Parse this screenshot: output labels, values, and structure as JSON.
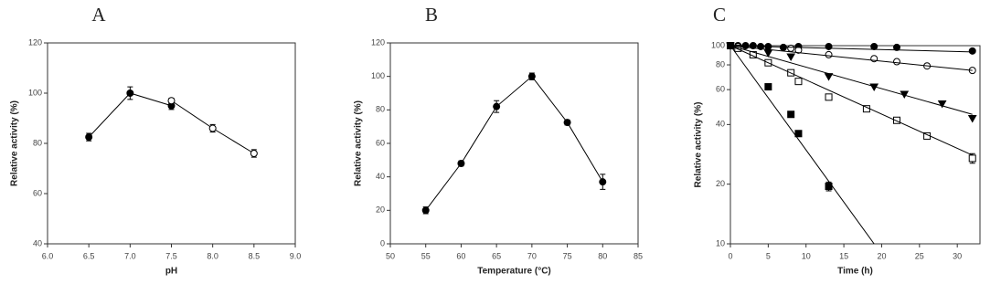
{
  "chart_data": [
    {
      "type": "scatter",
      "title": "A",
      "xlabel": "pH",
      "ylabel": "Relative activity (%)",
      "xlim": [
        6,
        9
      ],
      "ylim": [
        40,
        120
      ],
      "xticks": [
        {
          "value": 6,
          "label": "6.0"
        },
        {
          "value": 6.5,
          "label": "6.5"
        },
        {
          "value": 7,
          "label": "7.0"
        },
        {
          "value": 7.5,
          "label": "7.5"
        },
        {
          "value": 8,
          "label": "8.0"
        },
        {
          "value": 8.5,
          "label": "8.5"
        },
        {
          "value": 9,
          "label": "9.0"
        }
      ],
      "yticks": [
        40,
        60,
        80,
        100,
        120
      ],
      "series": [
        {
          "x": [
            6.5,
            7,
            7.5
          ],
          "values": [
            82.5,
            100,
            95
          ],
          "errors": [
            1.5,
            2.5,
            1.5
          ],
          "marker": "circle-filled",
          "line": true,
          "color": "#000000"
        },
        {
          "x": [
            7.5,
            8,
            8.5
          ],
          "values": [
            97,
            86,
            76
          ],
          "errors": [
            1,
            1.5,
            1.5
          ],
          "marker": "circle-open",
          "line": true,
          "color": "#000000"
        }
      ]
    },
    {
      "type": "scatter",
      "title": "B",
      "xlabel": "Temperature (°C)",
      "ylabel": "Relative activity (%)",
      "xlim": [
        50,
        85
      ],
      "ylim": [
        0,
        120
      ],
      "xticks": [
        50,
        55,
        60,
        65,
        70,
        75,
        80,
        85
      ],
      "yticks": [
        0,
        20,
        40,
        60,
        80,
        100,
        120
      ],
      "series": [
        {
          "x": [
            55,
            60,
            65,
            70,
            75,
            80
          ],
          "values": [
            20,
            48,
            82,
            100,
            72.5,
            37
          ],
          "errors": [
            2,
            1.5,
            3.5,
            2,
            1.5,
            4.5
          ],
          "marker": "circle-filled",
          "line": true,
          "color": "#000000"
        }
      ]
    },
    {
      "type": "scatter",
      "title": "C",
      "xlabel": "Time (h)",
      "ylabel": "Relative activity (%)",
      "xlim": [
        0,
        33
      ],
      "ylim": [
        10,
        100
      ],
      "ylog": true,
      "xticks": [
        0,
        5,
        10,
        15,
        20,
        25,
        30
      ],
      "yticks": [
        10,
        20,
        40,
        60,
        80,
        100
      ],
      "series": [
        {
          "x": [
            0,
            1,
            2,
            3,
            4,
            5,
            7,
            9,
            13,
            19,
            22,
            32
          ],
          "values": [
            100,
            100,
            100,
            100,
            99,
            99,
            98,
            99,
            99,
            99,
            98,
            94
          ],
          "marker": "circle-filled",
          "line": false,
          "color": "#000000"
        },
        {
          "x": [
            0,
            1,
            8,
            9,
            13,
            19,
            22,
            26,
            32
          ],
          "values": [
            100,
            99,
            97,
            95,
            90,
            86,
            83,
            79,
            75
          ],
          "marker": "circle-open",
          "line": false,
          "color": "#000000"
        },
        {
          "x": [
            0,
            5,
            8,
            13,
            19,
            23,
            28,
            32
          ],
          "values": [
            100,
            92,
            88,
            70,
            62,
            57,
            51,
            43
          ],
          "marker": "triangle-down",
          "line": false,
          "color": "#000000"
        },
        {
          "x": [
            0,
            1,
            3,
            5,
            8,
            9,
            13,
            18,
            22,
            26,
            32
          ],
          "values": [
            100,
            97,
            90,
            82,
            73,
            66,
            55,
            48,
            42,
            35,
            27
          ],
          "errors": [
            0,
            0,
            0,
            0,
            0,
            0,
            0,
            0,
            1,
            0,
            1.5
          ],
          "marker": "square-open",
          "line": false,
          "color": "#000000"
        },
        {
          "x": [
            0,
            5,
            8,
            9,
            13
          ],
          "values": [
            100,
            62,
            45,
            36,
            19.5
          ],
          "errors": [
            0,
            0,
            0,
            0,
            1
          ],
          "marker": "square-filled",
          "line": false,
          "color": "#000000"
        },
        {
          "x": [
            0,
            32
          ],
          "values": [
            100,
            93
          ],
          "marker": "none",
          "line": true,
          "color": "#000000"
        },
        {
          "x": [
            0,
            32
          ],
          "values": [
            100,
            75
          ],
          "marker": "none",
          "line": true,
          "color": "#000000"
        },
        {
          "x": [
            0,
            32
          ],
          "values": [
            100,
            45
          ],
          "marker": "none",
          "line": true,
          "color": "#000000"
        },
        {
          "x": [
            0,
            32
          ],
          "values": [
            100,
            28
          ],
          "marker": "none",
          "line": true,
          "color": "#000000"
        },
        {
          "x": [
            0,
            19
          ],
          "values": [
            100,
            10
          ],
          "marker": "none",
          "line": true,
          "color": "#000000"
        }
      ]
    }
  ]
}
